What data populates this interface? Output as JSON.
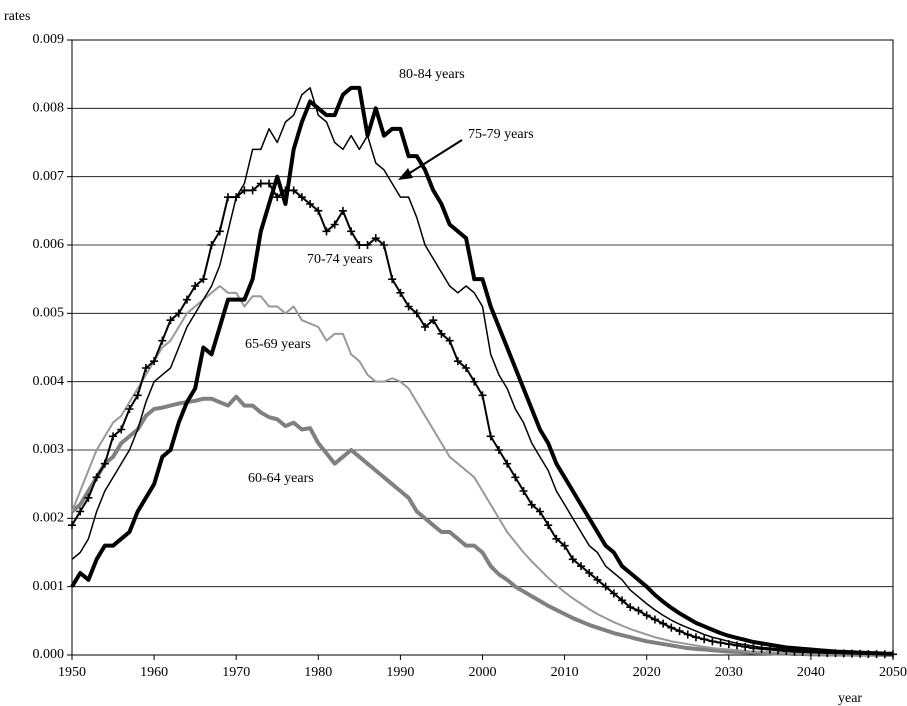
{
  "chart_data": {
    "type": "line",
    "y_label": "rates",
    "x_label": "year",
    "x": [
      1950,
      1951,
      1952,
      1953,
      1954,
      1955,
      1956,
      1957,
      1958,
      1959,
      1960,
      1961,
      1962,
      1963,
      1964,
      1965,
      1966,
      1967,
      1968,
      1969,
      1970,
      1971,
      1972,
      1973,
      1974,
      1975,
      1976,
      1977,
      1978,
      1979,
      1980,
      1981,
      1982,
      1983,
      1984,
      1985,
      1986,
      1987,
      1988,
      1989,
      1990,
      1991,
      1992,
      1993,
      1994,
      1995,
      1996,
      1997,
      1998,
      1999,
      2000,
      2001,
      2002,
      2003,
      2004,
      2005,
      2006,
      2007,
      2008,
      2009,
      2010,
      2011,
      2012,
      2013,
      2014,
      2015,
      2016,
      2017,
      2018,
      2019,
      2020,
      2021,
      2022,
      2023,
      2024,
      2025,
      2026,
      2027,
      2028,
      2029,
      2030,
      2031,
      2032,
      2033,
      2034,
      2035,
      2036,
      2037,
      2038,
      2039,
      2040,
      2041,
      2042,
      2043,
      2044,
      2045,
      2046,
      2047,
      2048,
      2049,
      2050
    ],
    "series": [
      {
        "name": "60-64 years",
        "color": "#808080",
        "line_width": 4,
        "values": [
          0.0021,
          0.0022,
          0.0024,
          0.0026,
          0.0028,
          0.0029,
          0.0031,
          0.0032,
          0.0033,
          0.0035,
          0.0036,
          0.00362,
          0.00365,
          0.00368,
          0.0037,
          0.00372,
          0.00375,
          0.00375,
          0.0037,
          0.00365,
          0.00378,
          0.00365,
          0.00365,
          0.00355,
          0.00348,
          0.00345,
          0.00335,
          0.0034,
          0.0033,
          0.00332,
          0.0031,
          0.00295,
          0.0028,
          0.0029,
          0.003,
          0.0029,
          0.0028,
          0.0027,
          0.0026,
          0.0025,
          0.0024,
          0.0023,
          0.0021,
          0.002,
          0.0019,
          0.0018,
          0.0018,
          0.0017,
          0.0016,
          0.0016,
          0.0015,
          0.0013,
          0.00118,
          0.0011,
          0.001,
          0.00093,
          0.00086,
          0.00079,
          0.00072,
          0.00066,
          0.0006,
          0.00054,
          0.00049,
          0.00044,
          0.0004,
          0.00036,
          0.00032,
          0.00029,
          0.00026,
          0.00023,
          0.0002,
          0.00018,
          0.00016,
          0.00014,
          0.00012,
          0.0001,
          9e-05,
          8e-05,
          7e-05,
          6e-05,
          5e-05,
          4.5e-05,
          4e-05,
          3.5e-05,
          3e-05,
          2.5e-05,
          2e-05,
          2e-05,
          1.5e-05,
          1.5e-05,
          1e-05,
          1e-05,
          8e-06,
          7e-06,
          6e-06,
          5e-06,
          4e-06,
          3e-06,
          3e-06,
          2e-06,
          2e-06
        ]
      },
      {
        "name": "65-69 years",
        "color": "#999999",
        "line_width": 2,
        "values": [
          0.0021,
          0.0024,
          0.0027,
          0.003,
          0.0032,
          0.0034,
          0.0035,
          0.0037,
          0.0039,
          0.0041,
          0.0043,
          0.0045,
          0.0046,
          0.0048,
          0.005,
          0.0051,
          0.0052,
          0.0053,
          0.0054,
          0.0053,
          0.0053,
          0.0051,
          0.00525,
          0.00525,
          0.0051,
          0.0051,
          0.005,
          0.0051,
          0.0049,
          0.00485,
          0.0048,
          0.0046,
          0.0047,
          0.0047,
          0.0044,
          0.0043,
          0.0041,
          0.004,
          0.004,
          0.00405,
          0.004,
          0.0039,
          0.0037,
          0.0035,
          0.0033,
          0.0031,
          0.0029,
          0.0028,
          0.0027,
          0.0026,
          0.0024,
          0.0022,
          0.002,
          0.0018,
          0.00165,
          0.0015,
          0.00137,
          0.00125,
          0.00113,
          0.00102,
          0.00092,
          0.00083,
          0.00075,
          0.00067,
          0.0006,
          0.00054,
          0.00048,
          0.00043,
          0.00038,
          0.00034,
          0.0003,
          0.00026,
          0.00023,
          0.0002,
          0.00018,
          0.00016,
          0.00014,
          0.00012,
          0.0001,
          9e-05,
          8e-05,
          7e-05,
          6e-05,
          5e-05,
          4.5e-05,
          4e-05,
          3.5e-05,
          3e-05,
          2.5e-05,
          2e-05,
          1.8e-05,
          1.5e-05,
          1.3e-05,
          1.1e-05,
          1e-05,
          8e-06,
          7e-06,
          6e-06,
          5e-06,
          4e-06,
          3e-06
        ]
      },
      {
        "name": "70-74 years",
        "color": "#000000",
        "line_width": 2,
        "marker": "+",
        "values": [
          0.0019,
          0.0021,
          0.0023,
          0.0026,
          0.0028,
          0.0032,
          0.0033,
          0.0036,
          0.0038,
          0.0042,
          0.0043,
          0.0046,
          0.0049,
          0.005,
          0.0052,
          0.0054,
          0.0055,
          0.006,
          0.0062,
          0.0067,
          0.0067,
          0.0068,
          0.0068,
          0.0069,
          0.0069,
          0.0067,
          0.0068,
          0.0068,
          0.0067,
          0.0066,
          0.0065,
          0.0062,
          0.0063,
          0.0065,
          0.0062,
          0.006,
          0.006,
          0.0061,
          0.006,
          0.0055,
          0.0053,
          0.0051,
          0.005,
          0.0048,
          0.0049,
          0.0047,
          0.0046,
          0.0043,
          0.0042,
          0.004,
          0.0038,
          0.0032,
          0.003,
          0.0028,
          0.0026,
          0.0024,
          0.0022,
          0.0021,
          0.0019,
          0.0017,
          0.0016,
          0.0014,
          0.0013,
          0.0012,
          0.0011,
          0.001,
          0.0009,
          0.0008,
          0.0007,
          0.00065,
          0.00058,
          0.00052,
          0.00046,
          0.0004,
          0.00035,
          0.0003,
          0.00026,
          0.00023,
          0.0002,
          0.00018,
          0.00016,
          0.00014,
          0.00012,
          0.0001,
          9e-05,
          8e-05,
          7e-05,
          6e-05,
          5e-05,
          4.5e-05,
          4e-05,
          3.5e-05,
          3e-05,
          2.7e-05,
          2.4e-05,
          2e-05,
          1.8e-05,
          1.5e-05,
          1.3e-05,
          1.1e-05,
          1e-05
        ]
      },
      {
        "name": "75-79 years",
        "color": "#000000",
        "line_width": 1.5,
        "values": [
          0.0014,
          0.0015,
          0.0017,
          0.0021,
          0.0024,
          0.0026,
          0.0028,
          0.003,
          0.0033,
          0.0037,
          0.004,
          0.0041,
          0.0042,
          0.0045,
          0.0048,
          0.005,
          0.0052,
          0.0054,
          0.0057,
          0.0062,
          0.0067,
          0.0069,
          0.0074,
          0.0074,
          0.0077,
          0.0075,
          0.0078,
          0.0079,
          0.0082,
          0.0083,
          0.0079,
          0.0078,
          0.0075,
          0.0074,
          0.0076,
          0.0074,
          0.0076,
          0.0072,
          0.0071,
          0.0069,
          0.0067,
          0.0067,
          0.0064,
          0.006,
          0.0058,
          0.0056,
          0.0054,
          0.0053,
          0.0054,
          0.0053,
          0.0051,
          0.0044,
          0.0041,
          0.0039,
          0.0036,
          0.0034,
          0.0031,
          0.0029,
          0.0027,
          0.0024,
          0.0022,
          0.002,
          0.0018,
          0.0016,
          0.0015,
          0.0013,
          0.0012,
          0.0011,
          0.00095,
          0.00085,
          0.00075,
          0.00066,
          0.00058,
          0.00051,
          0.00045,
          0.0004,
          0.00035,
          0.0003,
          0.00026,
          0.00023,
          0.0002,
          0.00017,
          0.00015,
          0.00013,
          0.00011,
          0.0001,
          9e-05,
          8e-05,
          7e-05,
          6e-05,
          5e-05,
          4.5e-05,
          4e-05,
          3.5e-05,
          3e-05,
          2.6e-05,
          2.2e-05,
          2e-05,
          1.7e-05,
          1.5e-05,
          1.3e-05
        ]
      },
      {
        "name": "80-84 years",
        "color": "#000000",
        "line_width": 4,
        "values": [
          0.001,
          0.0012,
          0.0011,
          0.0014,
          0.0016,
          0.0016,
          0.0017,
          0.0018,
          0.0021,
          0.0023,
          0.0025,
          0.0029,
          0.003,
          0.0034,
          0.0037,
          0.0039,
          0.0045,
          0.0044,
          0.0048,
          0.0052,
          0.0052,
          0.0052,
          0.0055,
          0.0062,
          0.0066,
          0.007,
          0.0066,
          0.0074,
          0.0078,
          0.0081,
          0.008,
          0.0079,
          0.0079,
          0.0082,
          0.0083,
          0.0083,
          0.0076,
          0.008,
          0.0076,
          0.0077,
          0.0077,
          0.0073,
          0.0073,
          0.0071,
          0.0068,
          0.0066,
          0.0063,
          0.0062,
          0.0061,
          0.0055,
          0.0055,
          0.0051,
          0.0048,
          0.0045,
          0.0042,
          0.0039,
          0.0036,
          0.0033,
          0.0031,
          0.0028,
          0.0026,
          0.0024,
          0.0022,
          0.002,
          0.0018,
          0.0016,
          0.0015,
          0.0013,
          0.0012,
          0.0011,
          0.001,
          0.00088,
          0.00078,
          0.00069,
          0.00061,
          0.00054,
          0.00047,
          0.00042,
          0.00037,
          0.00032,
          0.00028,
          0.00025,
          0.00022,
          0.00019,
          0.00017,
          0.00015,
          0.00013,
          0.00011,
          0.0001,
          9e-05,
          8e-05,
          7e-05,
          6e-05,
          5e-05,
          4.5e-05,
          4e-05,
          3.5e-05,
          3e-05,
          2.5e-05,
          2e-05,
          1.8e-05
        ]
      }
    ],
    "xlim": [
      1950,
      2050
    ],
    "xticks": [
      1950,
      1960,
      1970,
      1980,
      1990,
      2000,
      2010,
      2020,
      2030,
      2040,
      2050
    ],
    "ylim": [
      0,
      0.009
    ],
    "yticks": [
      {
        "value": 0,
        "label": "0.000"
      },
      {
        "value": 0.001,
        "label": "0.001"
      },
      {
        "value": 0.002,
        "label": "0.002"
      },
      {
        "value": 0.003,
        "label": "0.003"
      },
      {
        "value": 0.004,
        "label": "0.004"
      },
      {
        "value": 0.005,
        "label": "0.005"
      },
      {
        "value": 0.006,
        "label": "0.006"
      },
      {
        "value": 0.007,
        "label": "0.007"
      },
      {
        "value": 0.008,
        "label": "0.008"
      },
      {
        "value": 0.009,
        "label": "0.009"
      }
    ],
    "grid": true
  }
}
